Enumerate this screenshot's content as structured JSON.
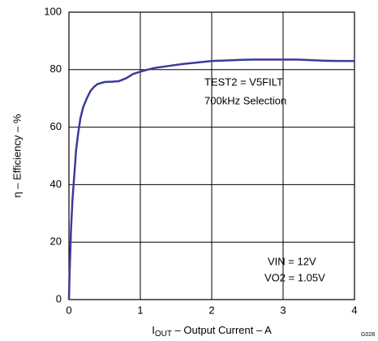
{
  "chart_data": {
    "type": "line",
    "xlabel": [
      "I",
      "OUT",
      " – Output Current – A"
    ],
    "ylabel": "η – Efficiency – %",
    "annotations": [
      "TEST2 = V5FILT",
      "700kHz Selection",
      "VIN = 12V",
      "VO2 = 1.05V",
      "G028"
    ],
    "x": [
      0,
      0.01,
      0.03,
      0.05,
      0.08,
      0.1,
      0.13,
      0.16,
      0.2,
      0.25,
      0.3,
      0.35,
      0.4,
      0.5,
      0.6,
      0.7,
      0.8,
      0.9,
      1.0,
      1.1,
      1.2,
      1.4,
      1.6,
      1.8,
      2.0,
      2.2,
      2.4,
      2.6,
      2.8,
      3.0,
      3.2,
      3.4,
      3.6,
      3.8,
      4.0
    ],
    "series": [
      {
        "color": "#3b3b98",
        "values": [
          0,
          10,
          25,
          35,
          45,
          52,
          58,
          63,
          67,
          70,
          72.5,
          74,
          75,
          75.7,
          75.8,
          76,
          77,
          78.5,
          79.3,
          80,
          80.6,
          81.3,
          82,
          82.5,
          83,
          83.2,
          83.4,
          83.5,
          83.5,
          83.5,
          83.5,
          83.3,
          83.1,
          83,
          83
        ]
      }
    ],
    "xlim": [
      0,
      4
    ],
    "xticks": [
      0,
      1,
      2,
      3,
      4
    ],
    "ylim": [
      0,
      100
    ],
    "yticks": [
      0,
      20,
      40,
      60,
      80,
      100
    ],
    "grid": true
  }
}
